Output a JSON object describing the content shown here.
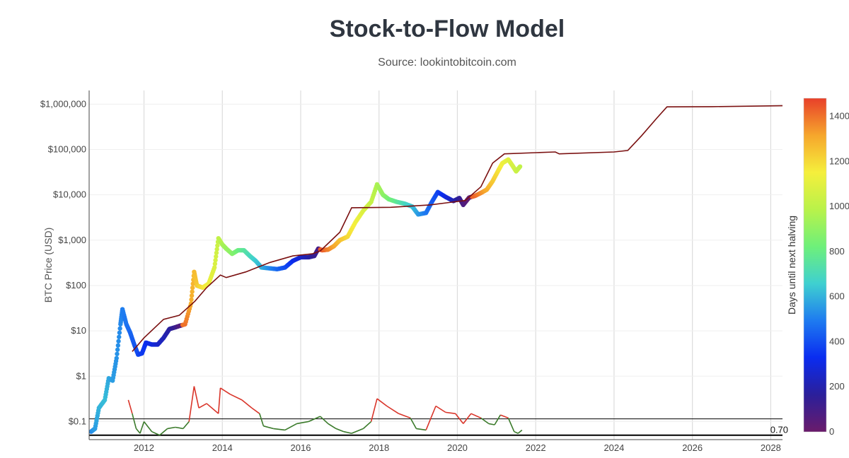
{
  "chart_data": {
    "type": "scatter",
    "title": "Stock-to-Flow Model",
    "subtitle": "Source: lookintobitcoin.com",
    "xlabel": "",
    "ylabel": "BTC Price (USD)",
    "x_range": [
      2010.6,
      2028.3
    ],
    "y_scale": "log",
    "y_range": [
      0.04,
      2000000
    ],
    "x_ticks": [
      {
        "value": 2012,
        "label": "2012"
      },
      {
        "value": 2014,
        "label": "2014"
      },
      {
        "value": 2016,
        "label": "2016"
      },
      {
        "value": 2018,
        "label": "2018"
      },
      {
        "value": 2020,
        "label": "2020"
      },
      {
        "value": 2022,
        "label": "2022"
      },
      {
        "value": 2024,
        "label": "2024"
      },
      {
        "value": 2026,
        "label": "2026"
      },
      {
        "value": 2028,
        "label": "2028"
      }
    ],
    "y_ticks": [
      {
        "value": 0.1,
        "label": "$0.1"
      },
      {
        "value": 1,
        "label": "$1"
      },
      {
        "value": 10,
        "label": "$10"
      },
      {
        "value": 100,
        "label": "$100"
      },
      {
        "value": 1000,
        "label": "$1,000"
      },
      {
        "value": 10000,
        "label": "$10,000"
      },
      {
        "value": 100000,
        "label": "$100,000"
      },
      {
        "value": 1000000,
        "label": "$1,000,000"
      }
    ],
    "colorbar": {
      "title": "Days until next halving",
      "min": 0,
      "max": 1480,
      "ticks": [
        0,
        200,
        400,
        600,
        800,
        1000,
        1200,
        1400
      ],
      "colors": [
        "#6a1b6b",
        "#2b1f9a",
        "#0a2cf0",
        "#1e7bf0",
        "#3fd0d0",
        "#6ef07a",
        "#b9f24a",
        "#f5ef3c",
        "#f6a62c",
        "#e8402a"
      ]
    },
    "series": [
      {
        "name": "BTC Price",
        "kind": "scatter-colored",
        "color_by": "days_until_halving",
        "points": [
          {
            "x": 2010.65,
            "y": 0.06,
            "c": 520
          },
          {
            "x": 2010.75,
            "y": 0.07,
            "c": 560
          },
          {
            "x": 2010.85,
            "y": 0.2,
            "c": 600
          },
          {
            "x": 2011.0,
            "y": 0.3,
            "c": 620
          },
          {
            "x": 2011.1,
            "y": 0.9,
            "c": 580
          },
          {
            "x": 2011.2,
            "y": 0.8,
            "c": 560
          },
          {
            "x": 2011.3,
            "y": 2.5,
            "c": 540
          },
          {
            "x": 2011.4,
            "y": 14,
            "c": 520
          },
          {
            "x": 2011.45,
            "y": 30,
            "c": 500
          },
          {
            "x": 2011.55,
            "y": 14,
            "c": 480
          },
          {
            "x": 2011.65,
            "y": 9,
            "c": 450
          },
          {
            "x": 2011.75,
            "y": 5,
            "c": 420
          },
          {
            "x": 2011.85,
            "y": 3,
            "c": 390
          },
          {
            "x": 2011.95,
            "y": 3.2,
            "c": 360
          },
          {
            "x": 2012.05,
            "y": 5.5,
            "c": 330
          },
          {
            "x": 2012.2,
            "y": 5,
            "c": 300
          },
          {
            "x": 2012.35,
            "y": 5,
            "c": 260
          },
          {
            "x": 2012.5,
            "y": 7,
            "c": 220
          },
          {
            "x": 2012.65,
            "y": 11,
            "c": 180
          },
          {
            "x": 2012.8,
            "y": 12,
            "c": 130
          },
          {
            "x": 2012.92,
            "y": 13,
            "c": 60
          },
          {
            "x": 2013.05,
            "y": 14,
            "c": 1400
          },
          {
            "x": 2013.2,
            "y": 40,
            "c": 1300
          },
          {
            "x": 2013.28,
            "y": 200,
            "c": 1270
          },
          {
            "x": 2013.35,
            "y": 100,
            "c": 1240
          },
          {
            "x": 2013.5,
            "y": 90,
            "c": 1180
          },
          {
            "x": 2013.65,
            "y": 110,
            "c": 1130
          },
          {
            "x": 2013.8,
            "y": 250,
            "c": 1080
          },
          {
            "x": 2013.9,
            "y": 1100,
            "c": 1020
          },
          {
            "x": 2014.0,
            "y": 800,
            "c": 960
          },
          {
            "x": 2014.1,
            "y": 650,
            "c": 920
          },
          {
            "x": 2014.25,
            "y": 500,
            "c": 880
          },
          {
            "x": 2014.4,
            "y": 600,
            "c": 820
          },
          {
            "x": 2014.55,
            "y": 600,
            "c": 760
          },
          {
            "x": 2014.7,
            "y": 450,
            "c": 700
          },
          {
            "x": 2014.85,
            "y": 350,
            "c": 650
          },
          {
            "x": 2015.0,
            "y": 250,
            "c": 600
          },
          {
            "x": 2015.2,
            "y": 240,
            "c": 530
          },
          {
            "x": 2015.4,
            "y": 230,
            "c": 460
          },
          {
            "x": 2015.6,
            "y": 250,
            "c": 400
          },
          {
            "x": 2015.8,
            "y": 350,
            "c": 330
          },
          {
            "x": 2016.0,
            "y": 420,
            "c": 260
          },
          {
            "x": 2016.2,
            "y": 420,
            "c": 190
          },
          {
            "x": 2016.35,
            "y": 450,
            "c": 140
          },
          {
            "x": 2016.45,
            "y": 650,
            "c": 100
          },
          {
            "x": 2016.55,
            "y": 600,
            "c": 1440
          },
          {
            "x": 2016.7,
            "y": 620,
            "c": 1380
          },
          {
            "x": 2016.85,
            "y": 740,
            "c": 1320
          },
          {
            "x": 2017.0,
            "y": 1000,
            "c": 1260
          },
          {
            "x": 2017.2,
            "y": 1200,
            "c": 1200
          },
          {
            "x": 2017.4,
            "y": 2500,
            "c": 1140
          },
          {
            "x": 2017.6,
            "y": 4500,
            "c": 1080
          },
          {
            "x": 2017.8,
            "y": 7000,
            "c": 1020
          },
          {
            "x": 2017.95,
            "y": 17000,
            "c": 960
          },
          {
            "x": 2018.1,
            "y": 10000,
            "c": 900
          },
          {
            "x": 2018.25,
            "y": 8000,
            "c": 840
          },
          {
            "x": 2018.45,
            "y": 7000,
            "c": 770
          },
          {
            "x": 2018.65,
            "y": 6400,
            "c": 700
          },
          {
            "x": 2018.85,
            "y": 5500,
            "c": 630
          },
          {
            "x": 2019.0,
            "y": 3700,
            "c": 560
          },
          {
            "x": 2019.2,
            "y": 4000,
            "c": 490
          },
          {
            "x": 2019.35,
            "y": 7000,
            "c": 430
          },
          {
            "x": 2019.5,
            "y": 11500,
            "c": 380
          },
          {
            "x": 2019.7,
            "y": 9000,
            "c": 300
          },
          {
            "x": 2019.9,
            "y": 7300,
            "c": 220
          },
          {
            "x": 2020.05,
            "y": 8500,
            "c": 150
          },
          {
            "x": 2020.15,
            "y": 6000,
            "c": 80
          },
          {
            "x": 2020.3,
            "y": 8700,
            "c": 20
          },
          {
            "x": 2020.45,
            "y": 9500,
            "c": 1420
          },
          {
            "x": 2020.6,
            "y": 11000,
            "c": 1360
          },
          {
            "x": 2020.75,
            "y": 13000,
            "c": 1300
          },
          {
            "x": 2020.9,
            "y": 20000,
            "c": 1240
          },
          {
            "x": 2021.05,
            "y": 35000,
            "c": 1180
          },
          {
            "x": 2021.15,
            "y": 50000,
            "c": 1140
          },
          {
            "x": 2021.3,
            "y": 60000,
            "c": 1100
          },
          {
            "x": 2021.4,
            "y": 45000,
            "c": 1070
          },
          {
            "x": 2021.5,
            "y": 33000,
            "c": 1040
          },
          {
            "x": 2021.6,
            "y": 42000,
            "c": 1010
          }
        ]
      },
      {
        "name": "Stock-to-Flow Model",
        "kind": "line",
        "color": "#7a1010",
        "points": [
          {
            "x": 2011.7,
            "y": 3.5
          },
          {
            "x": 2012.0,
            "y": 7
          },
          {
            "x": 2012.5,
            "y": 18
          },
          {
            "x": 2012.9,
            "y": 22
          },
          {
            "x": 2013.3,
            "y": 45
          },
          {
            "x": 2013.6,
            "y": 90
          },
          {
            "x": 2013.95,
            "y": 170
          },
          {
            "x": 2014.1,
            "y": 150
          },
          {
            "x": 2014.6,
            "y": 200
          },
          {
            "x": 2015.2,
            "y": 320
          },
          {
            "x": 2015.8,
            "y": 450
          },
          {
            "x": 2016.3,
            "y": 500
          },
          {
            "x": 2016.5,
            "y": 580
          },
          {
            "x": 2017.0,
            "y": 1500
          },
          {
            "x": 2017.3,
            "y": 5200
          },
          {
            "x": 2018.3,
            "y": 5300
          },
          {
            "x": 2019.3,
            "y": 6000
          },
          {
            "x": 2020.2,
            "y": 7500
          },
          {
            "x": 2020.6,
            "y": 15000
          },
          {
            "x": 2020.9,
            "y": 50000
          },
          {
            "x": 2021.2,
            "y": 80000
          },
          {
            "x": 2022.0,
            "y": 85000
          },
          {
            "x": 2022.5,
            "y": 88000
          },
          {
            "x": 2022.6,
            "y": 80000
          },
          {
            "x": 2024.0,
            "y": 88000
          },
          {
            "x": 2024.35,
            "y": 95000
          },
          {
            "x": 2024.7,
            "y": 200000
          },
          {
            "x": 2025.1,
            "y": 500000
          },
          {
            "x": 2025.35,
            "y": 870000
          },
          {
            "x": 2026.5,
            "y": 880000
          },
          {
            "x": 2028.3,
            "y": 920000
          }
        ]
      },
      {
        "name": "Stock-to-Flow Deflection",
        "kind": "line-threshold",
        "threshold_color_above": "#d9352a",
        "threshold_color_below": "#3a7a2a",
        "points": [
          {
            "x": 2011.6,
            "y": 0.3
          },
          {
            "x": 2011.7,
            "y": 0.15
          },
          {
            "x": 2011.8,
            "y": 0.07
          },
          {
            "x": 2011.9,
            "y": 0.055
          },
          {
            "x": 2012.0,
            "y": 0.1
          },
          {
            "x": 2012.2,
            "y": 0.06
          },
          {
            "x": 2012.4,
            "y": 0.05
          },
          {
            "x": 2012.6,
            "y": 0.07
          },
          {
            "x": 2012.8,
            "y": 0.075
          },
          {
            "x": 2013.0,
            "y": 0.07
          },
          {
            "x": 2013.15,
            "y": 0.1
          },
          {
            "x": 2013.28,
            "y": 0.6
          },
          {
            "x": 2013.4,
            "y": 0.2
          },
          {
            "x": 2013.6,
            "y": 0.25
          },
          {
            "x": 2013.9,
            "y": 0.15
          },
          {
            "x": 2013.95,
            "y": 0.55
          },
          {
            "x": 2014.2,
            "y": 0.4
          },
          {
            "x": 2014.5,
            "y": 0.3
          },
          {
            "x": 2014.75,
            "y": 0.2
          },
          {
            "x": 2014.95,
            "y": 0.15
          },
          {
            "x": 2015.05,
            "y": 0.08
          },
          {
            "x": 2015.3,
            "y": 0.07
          },
          {
            "x": 2015.6,
            "y": 0.065
          },
          {
            "x": 2015.9,
            "y": 0.09
          },
          {
            "x": 2016.2,
            "y": 0.1
          },
          {
            "x": 2016.5,
            "y": 0.13
          },
          {
            "x": 2016.7,
            "y": 0.09
          },
          {
            "x": 2016.9,
            "y": 0.07
          },
          {
            "x": 2017.1,
            "y": 0.06
          },
          {
            "x": 2017.3,
            "y": 0.055
          },
          {
            "x": 2017.6,
            "y": 0.07
          },
          {
            "x": 2017.8,
            "y": 0.1
          },
          {
            "x": 2017.95,
            "y": 0.32
          },
          {
            "x": 2018.2,
            "y": 0.22
          },
          {
            "x": 2018.5,
            "y": 0.15
          },
          {
            "x": 2018.8,
            "y": 0.12
          },
          {
            "x": 2018.95,
            "y": 0.07
          },
          {
            "x": 2019.2,
            "y": 0.065
          },
          {
            "x": 2019.45,
            "y": 0.22
          },
          {
            "x": 2019.7,
            "y": 0.16
          },
          {
            "x": 2019.95,
            "y": 0.15
          },
          {
            "x": 2020.15,
            "y": 0.09
          },
          {
            "x": 2020.35,
            "y": 0.15
          },
          {
            "x": 2020.6,
            "y": 0.12
          },
          {
            "x": 2020.8,
            "y": 0.09
          },
          {
            "x": 2020.95,
            "y": 0.085
          },
          {
            "x": 2021.1,
            "y": 0.14
          },
          {
            "x": 2021.3,
            "y": 0.12
          },
          {
            "x": 2021.45,
            "y": 0.06
          },
          {
            "x": 2021.55,
            "y": 0.055
          },
          {
            "x": 2021.65,
            "y": 0.065
          }
        ]
      }
    ],
    "reference_lines": [
      {
        "y": 0.115,
        "color": "#000000",
        "width": 1
      },
      {
        "y": 0.05,
        "color": "#000000",
        "width": 2
      }
    ],
    "annotations": [
      {
        "text": "0.70",
        "x": 2028.0,
        "y": 0.06
      }
    ],
    "grid": true
  }
}
